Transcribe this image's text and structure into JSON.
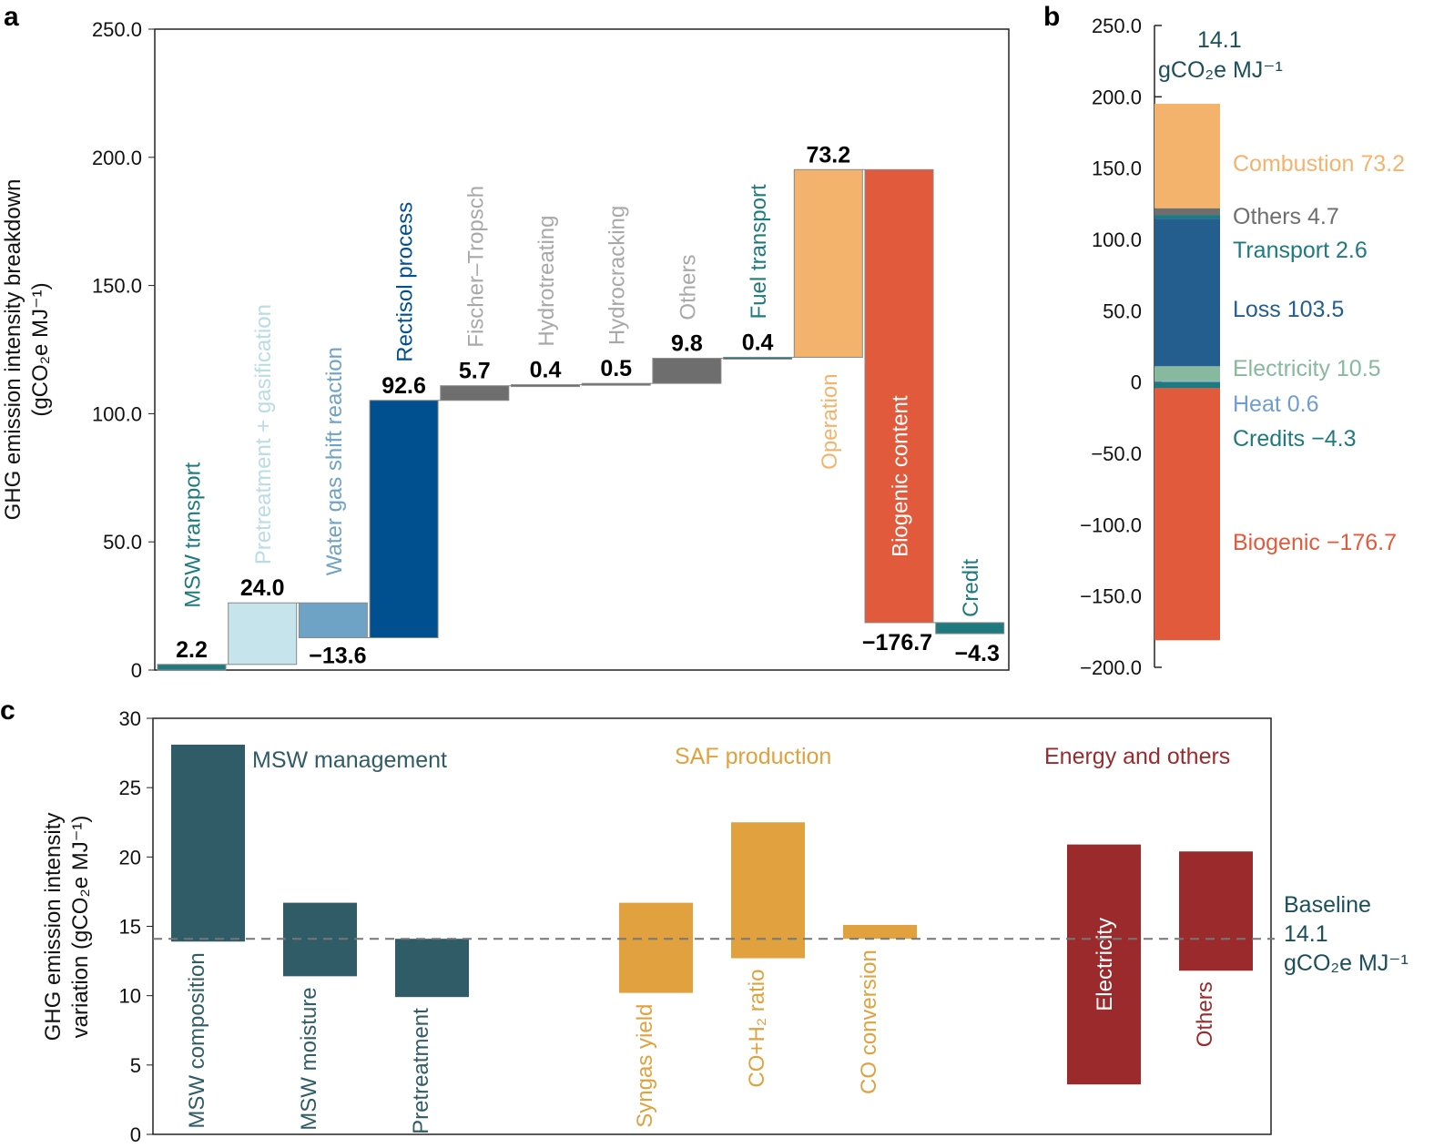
{
  "chart_data": [
    {
      "panel": "a",
      "type": "waterfall",
      "ylabel": [
        "GHG emission intensity breakdown",
        "(gCO₂e MJ⁻¹)"
      ],
      "ylim": [
        0,
        250
      ],
      "yticks": [
        "0",
        "50.0",
        "100.0",
        "150.0",
        "200.0",
        "250.0"
      ],
      "bars": [
        {
          "label": "MSW transport",
          "value": 2.2,
          "value_label": "2.2",
          "color": "#1f7a7f",
          "label_color": "#1f7a7f"
        },
        {
          "label": "Pretreatment + gasification",
          "value": 24.0,
          "value_label": "24.0",
          "color": "#c6e4eb",
          "label_color": "#b9dce5"
        },
        {
          "label": "Water gas shift reaction",
          "value": -13.6,
          "value_label": "−13.6",
          "color": "#6ea3c6",
          "label_color": "#6ea3c6"
        },
        {
          "label": "Rectisol process",
          "value": 92.6,
          "value_label": "92.6",
          "color": "#004f8f",
          "label_color": "#004f8f"
        },
        {
          "label": "Fischer–Tropsch",
          "value": 5.7,
          "value_label": "5.7",
          "color": "#6e6e6e",
          "label_color": "#a8a8a8"
        },
        {
          "label": "Hydrotreating",
          "value": 0.4,
          "value_label": "0.4",
          "color": "#6e6e6e",
          "label_color": "#a8a8a8"
        },
        {
          "label": "Hydrocracking",
          "value": 0.5,
          "value_label": "0.5",
          "color": "#6e6e6e",
          "label_color": "#a8a8a8"
        },
        {
          "label": "Others",
          "value": 9.8,
          "value_label": "9.8",
          "color": "#6e6e6e",
          "label_color": "#a8a8a8"
        },
        {
          "label": "Fuel transport",
          "value": 0.4,
          "value_label": "0.4",
          "color": "#1f7a7f",
          "label_color": "#1f7a7f"
        },
        {
          "label": "Operation",
          "value": 73.2,
          "value_label": "73.2",
          "color": "#f4b36c",
          "label_color": "#f4b36c"
        },
        {
          "label": "Biogenic content",
          "value": -176.7,
          "value_label": "−176.7",
          "color": "#e05a3b",
          "label_color": "#ffffff"
        },
        {
          "label": "Credit",
          "value": -4.3,
          "value_label": "−4.3",
          "color": "#1f7a7f",
          "label_color": "#1f7a7f"
        }
      ]
    },
    {
      "panel": "b",
      "type": "stacked_bar",
      "ylim": [
        -200,
        250
      ],
      "yticks": [
        "−200.0",
        "−150.0",
        "−100.0",
        "−50.0",
        "0",
        "50.0",
        "100.0",
        "150.0",
        "200.0",
        "250.0"
      ],
      "total_label": [
        "14.1",
        "gCO₂e MJ⁻¹"
      ],
      "total": 14.1,
      "segments": [
        {
          "name": "Combustion",
          "value": 73.2,
          "label": "Combustion 73.2",
          "color": "#f4b36c"
        },
        {
          "name": "Others",
          "value": 4.7,
          "label": "Others 4.7",
          "color": "#6e6e6e"
        },
        {
          "name": "Transport",
          "value": 2.6,
          "label": "Transport 2.6",
          "color": "#1f7a7f"
        },
        {
          "name": "Loss",
          "value": 103.5,
          "label": "Loss 103.5",
          "color": "#245e8e"
        },
        {
          "name": "Electricity",
          "value": 10.5,
          "label": "Electricity 10.5",
          "color": "#86b99d"
        },
        {
          "name": "Heat",
          "value": 0.6,
          "label": "Heat 0.6",
          "color": "#6f9dd3"
        },
        {
          "name": "Credits",
          "value": -4.3,
          "label": "Credits −4.3",
          "color": "#1f7a7f"
        },
        {
          "name": "Biogenic",
          "value": -176.7,
          "label": "Biogenic −176.7",
          "color": "#e05a3b"
        }
      ]
    },
    {
      "panel": "c",
      "type": "floating_bar",
      "ylabel": [
        "GHG emission intensity",
        "variation (gCO₂e MJ⁻¹)"
      ],
      "ylim": [
        0,
        30
      ],
      "yticks": [
        "0",
        "5",
        "10",
        "15",
        "20",
        "25",
        "30"
      ],
      "baseline": 14.1,
      "baseline_label": [
        "Baseline",
        "14.1",
        "gCO₂e MJ⁻¹"
      ],
      "groups": [
        {
          "name": "MSW management",
          "color": "#2f5c66"
        },
        {
          "name": "SAF production",
          "color": "#e0a13e"
        },
        {
          "name": "Energy and others",
          "color": "#9b2a2d"
        }
      ],
      "bars": [
        {
          "label": "MSW composition",
          "group": 0,
          "low": 13.9,
          "high": 28.1
        },
        {
          "label": "MSW moisture",
          "group": 0,
          "low": 11.4,
          "high": 16.7
        },
        {
          "label": "Pretreatment",
          "group": 0,
          "low": 9.9,
          "high": 14.1
        },
        {
          "label": "Syngas yield",
          "group": 1,
          "low": 10.2,
          "high": 16.7
        },
        {
          "label": "CO+H₂ ratio",
          "group": 1,
          "low": 12.7,
          "high": 22.5
        },
        {
          "label": "CO conversion",
          "group": 1,
          "low": 14.1,
          "high": 15.1
        },
        {
          "label": "Electricity",
          "group": 2,
          "low": 3.6,
          "high": 20.9
        },
        {
          "label": "Others",
          "group": 2,
          "low": 11.8,
          "high": 20.4
        }
      ]
    }
  ],
  "panel_labels": [
    "a",
    "b",
    "c"
  ]
}
